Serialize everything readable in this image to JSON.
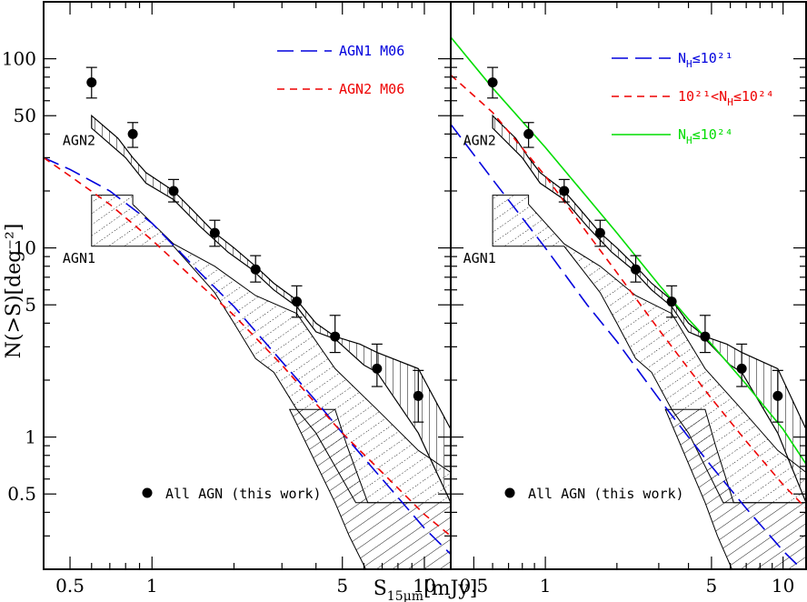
{
  "chart_data": {
    "type": "line",
    "axes": {
      "xscale": "log",
      "yscale": "log",
      "xlim": [
        0.4,
        12.5
      ],
      "ylim": [
        0.2,
        200
      ],
      "xticks": [
        0.5,
        1,
        5,
        10
      ],
      "xtick_labels": [
        "0.5",
        "1",
        "5",
        "10"
      ],
      "yticks": [
        0.5,
        1,
        5,
        10,
        50,
        100
      ],
      "ytick_labels": [
        "0.5",
        "1",
        "5",
        "10",
        "50",
        "100"
      ],
      "xlabel": "S15μm[mJy]",
      "ylabel": "N(>S)[deg⁻²]"
    },
    "data_points": {
      "name": "All AGN (this work)",
      "x": [
        0.6,
        0.85,
        1.2,
        1.7,
        2.4,
        3.4,
        4.7,
        6.7,
        9.5
      ],
      "y": [
        75,
        40,
        20,
        12,
        7.7,
        5.2,
        3.4,
        2.3,
        1.65
      ],
      "err_hi": [
        90,
        46,
        23,
        14,
        9.1,
        6.3,
        4.4,
        3.1,
        2.25
      ],
      "err_lo": [
        62,
        34,
        17.5,
        10.2,
        6.6,
        4.3,
        2.8,
        1.85,
        1.2
      ]
    },
    "bands": {
      "agn2_label": "AGN2",
      "agn1_label": "AGN1",
      "agn2_upper": {
        "x": [
          0.6,
          0.75,
          0.85,
          0.95,
          1.2,
          1.4,
          1.7,
          2.0,
          2.4,
          2.8,
          3.4,
          4.0,
          4.7,
          5.8,
          6.7,
          9.5,
          12.5
        ],
        "y": [
          50,
          38,
          30,
          25,
          20,
          16,
          12,
          10,
          8,
          6.5,
          5.3,
          4,
          3.4,
          3.1,
          2.8,
          2.3,
          1.1
        ]
      },
      "agn2_lower": {
        "x": [
          0.6,
          0.8,
          0.95,
          1.2,
          1.5,
          1.9,
          2.3,
          2.8,
          3.4,
          4.0,
          4.7,
          6.0,
          6.7,
          9.5,
          12.5
        ],
        "y": [
          43,
          30,
          22,
          18,
          13,
          9.5,
          7.8,
          6,
          4.9,
          3.6,
          3.3,
          2.4,
          2.2,
          1.05,
          0.45
        ]
      },
      "agn1_upper": {
        "x": [
          0.6,
          0.85,
          0.85,
          1.2,
          1.7,
          2.4,
          3.4,
          4.7,
          6.7,
          9.5,
          12.5
        ],
        "y": [
          19,
          19,
          17,
          10.5,
          8,
          5.6,
          4.5,
          2.3,
          1.4,
          0.85,
          0.65
        ]
      },
      "agn1_lower": {
        "x": [
          0.6,
          0.85,
          1.2,
          1.7,
          2.0,
          2.4,
          2.8,
          3.4,
          4.0,
          4.7,
          5.6,
          6.7,
          8.0,
          9.5,
          12.5
        ],
        "y": [
          10.2,
          10.2,
          10.2,
          5.8,
          4,
          2.6,
          2.2,
          1.4,
          1.05,
          0.7,
          0.45,
          0.45,
          0.45,
          0.45,
          0.45
        ]
      },
      "agn1_step_upper": {
        "x": [
          3.2,
          4.7,
          4.7,
          5.2,
          6.2,
          12.5
        ],
        "y": [
          1.4,
          1.4,
          1.4,
          0.9,
          0.45,
          0.45
        ]
      },
      "agn1_step_lower": {
        "x": [
          4.7,
          5.3,
          6.1,
          6.7,
          9.5,
          12.5
        ],
        "y": [
          0.45,
          0.3,
          0.2,
          0.2,
          0.2,
          0.2
        ]
      }
    },
    "panels": [
      {
        "legend": [
          {
            "label": "AGN1 M06",
            "color": "#0000dd",
            "dash": "long"
          },
          {
            "label": "AGN2 M06",
            "color": "#ee0000",
            "dash": "short"
          }
        ],
        "series": [
          {
            "name": "AGN1 M06",
            "color": "#0000dd",
            "dash": "long",
            "x": [
              0.4,
              0.5,
              0.7,
              1.0,
              1.5,
              2.0,
              3.0,
              4.0,
              5.0,
              7.0,
              10.0,
              12.5
            ],
            "y": [
              30,
              26,
              20,
              13.5,
              7.4,
              4.9,
              2.5,
              1.55,
              1.05,
              0.6,
              0.33,
              0.24
            ]
          },
          {
            "name": "AGN2 M06",
            "color": "#ee0000",
            "dash": "short",
            "x": [
              0.4,
              0.5,
              0.7,
              1.0,
              1.5,
              2.0,
              3.0,
              4.0,
              5.0,
              7.0,
              10.0,
              12.5
            ],
            "y": [
              30,
              24,
              17,
              11,
              6.4,
              4.4,
              2.4,
              1.5,
              1.05,
              0.65,
              0.39,
              0.3
            ]
          }
        ]
      },
      {
        "legend": [
          {
            "label_main": "N",
            "label_sub": "H",
            "label_rest": "≤10²¹",
            "color": "#0000dd",
            "dash": "long"
          },
          {
            "label_main": "10²¹<N",
            "label_sub": "H",
            "label_rest": "≤10²⁴",
            "color": "#ee0000",
            "dash": "short"
          },
          {
            "label_main": "N",
            "label_sub": "H",
            "label_rest": "≤10²⁴",
            "color": "#00dd00",
            "dash": "solid"
          }
        ],
        "series": [
          {
            "name": "N_H≤10^21",
            "color": "#0000dd",
            "dash": "long",
            "x": [
              0.4,
              0.6,
              1.0,
              1.5,
              2.0,
              3.0,
              4.0,
              5.0,
              7.0,
              10.0,
              12.5
            ],
            "y": [
              45,
              23,
              10,
              5,
              3.2,
              1.6,
              1.0,
              0.7,
              0.42,
              0.25,
              0.19
            ]
          },
          {
            "name": "10^21<N_H≤10^24",
            "color": "#ee0000",
            "dash": "short",
            "x": [
              0.4,
              0.6,
              1.0,
              1.5,
              2.0,
              3.0,
              4.0,
              5.0,
              7.0,
              10.0,
              12.5
            ],
            "y": [
              82,
              52,
              24,
              12,
              7.4,
              3.7,
              2.3,
              1.6,
              0.95,
              0.56,
              0.42
            ]
          },
          {
            "name": "N_H≤10^24",
            "color": "#00dd00",
            "dash": "solid",
            "x": [
              0.4,
              0.6,
              1.0,
              1.5,
              2.0,
              3.0,
              4.0,
              5.0,
              7.0,
              10.0,
              12.5
            ],
            "y": [
              130,
              70,
              34,
              18.5,
              12,
              6.4,
              4.2,
              3.1,
              1.9,
              1.1,
              0.72
            ]
          }
        ]
      }
    ],
    "legend_points_label": "All AGN (this work)"
  }
}
